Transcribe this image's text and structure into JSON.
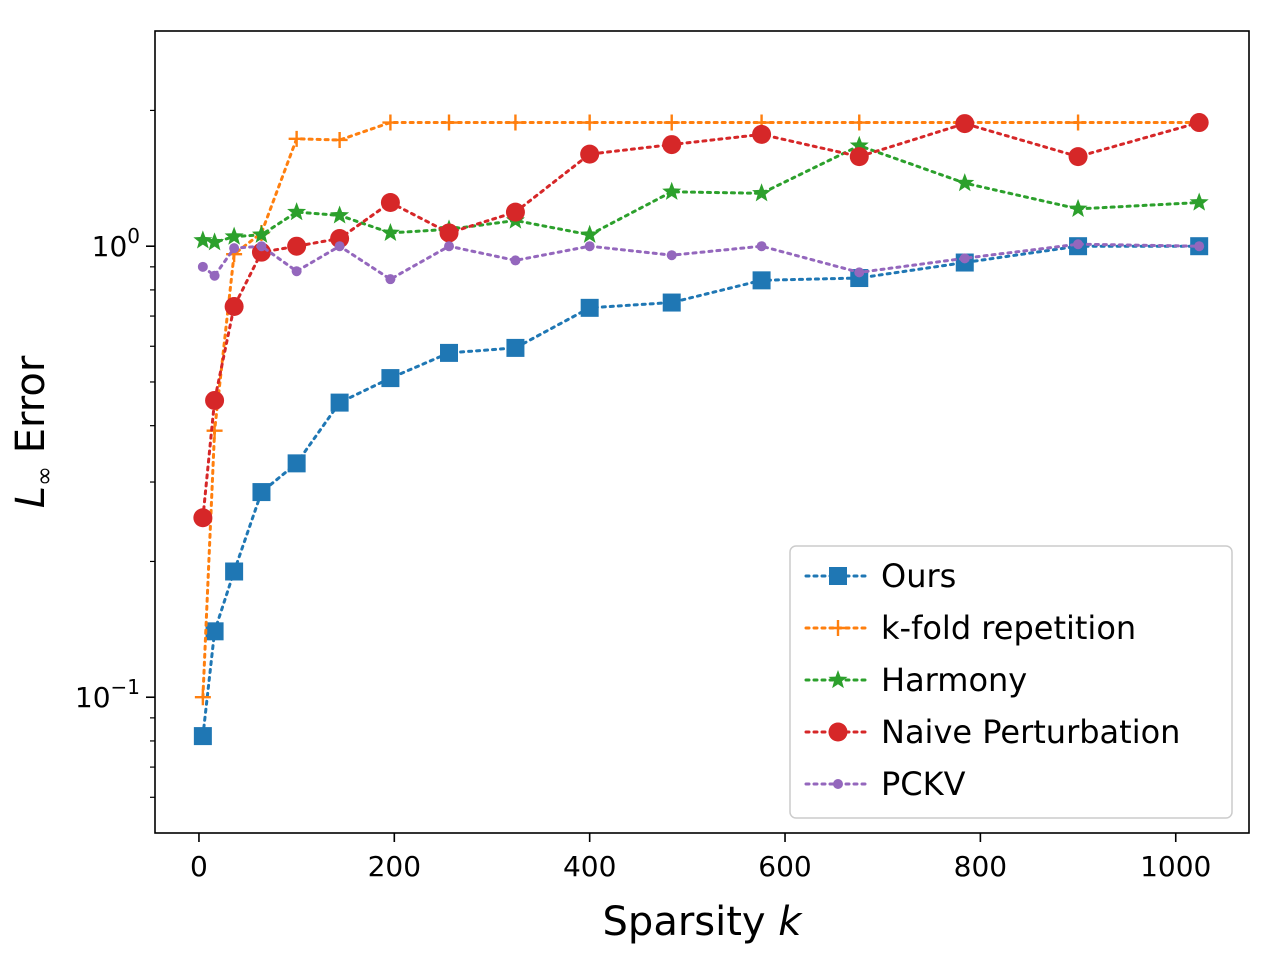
{
  "chart_data": {
    "type": "line",
    "title": "",
    "xlabel_text": "Sparsity ",
    "xlabel_var": "k",
    "ylabel_var": "L",
    "ylabel_sub": "∞",
    "ylabel_text": " Error",
    "yscale": "log",
    "xlim": [
      -45,
      1075
    ],
    "ylim": [
      0.05,
      3.0
    ],
    "x_ticks": [
      0,
      200,
      400,
      600,
      800,
      1000
    ],
    "x_tick_labels": [
      "0",
      "200",
      "400",
      "600",
      "800",
      "1000"
    ],
    "y_major_ticks": [
      {
        "value": 0.1,
        "base": "10",
        "exp": "−1"
      },
      {
        "value": 1,
        "base": "10",
        "exp": "0"
      }
    ],
    "y_minor_ticks": [
      0.06,
      0.07,
      0.08,
      0.09,
      0.2,
      0.3,
      0.4,
      0.5,
      0.6,
      0.7,
      0.8,
      0.9,
      2
    ],
    "x": [
      4,
      16,
      36,
      64,
      100,
      144,
      196,
      256,
      324,
      400,
      484,
      576,
      676,
      784,
      900,
      1024
    ],
    "series": [
      {
        "name": "Ours",
        "color": "#1f77b4",
        "marker": "square",
        "values": [
          0.082,
          0.14,
          0.19,
          0.285,
          0.33,
          0.45,
          0.51,
          0.58,
          0.595,
          0.73,
          0.75,
          0.84,
          0.85,
          0.92,
          1.0,
          1.0
        ]
      },
      {
        "name": "k-fold repetition",
        "color": "#ff7f0e",
        "marker": "plus",
        "values": [
          0.1,
          0.39,
          0.96,
          1.07,
          1.73,
          1.72,
          1.88,
          1.88,
          1.88,
          1.88,
          1.88,
          1.88,
          1.88,
          1.88,
          1.88,
          1.88
        ]
      },
      {
        "name": "Harmony",
        "color": "#2ca02c",
        "marker": "star",
        "values": [
          1.03,
          1.02,
          1.05,
          1.06,
          1.19,
          1.17,
          1.07,
          1.09,
          1.14,
          1.06,
          1.32,
          1.31,
          1.67,
          1.38,
          1.21,
          1.25
        ]
      },
      {
        "name": "Naive Perturbation",
        "color": "#d62728",
        "marker": "circle",
        "values": [
          0.25,
          0.455,
          0.735,
          0.97,
          1.0,
          1.04,
          1.25,
          1.07,
          1.19,
          1.6,
          1.68,
          1.77,
          1.58,
          1.87,
          1.58,
          1.88
        ]
      },
      {
        "name": "PCKV",
        "color": "#9467bd",
        "marker": "dot",
        "values": [
          0.9,
          0.86,
          0.99,
          1.0,
          0.88,
          1.0,
          0.845,
          1.0,
          0.93,
          1.0,
          0.955,
          1.0,
          0.875,
          0.94,
          1.01,
          1.0
        ]
      }
    ],
    "legend_position": "lower right"
  }
}
